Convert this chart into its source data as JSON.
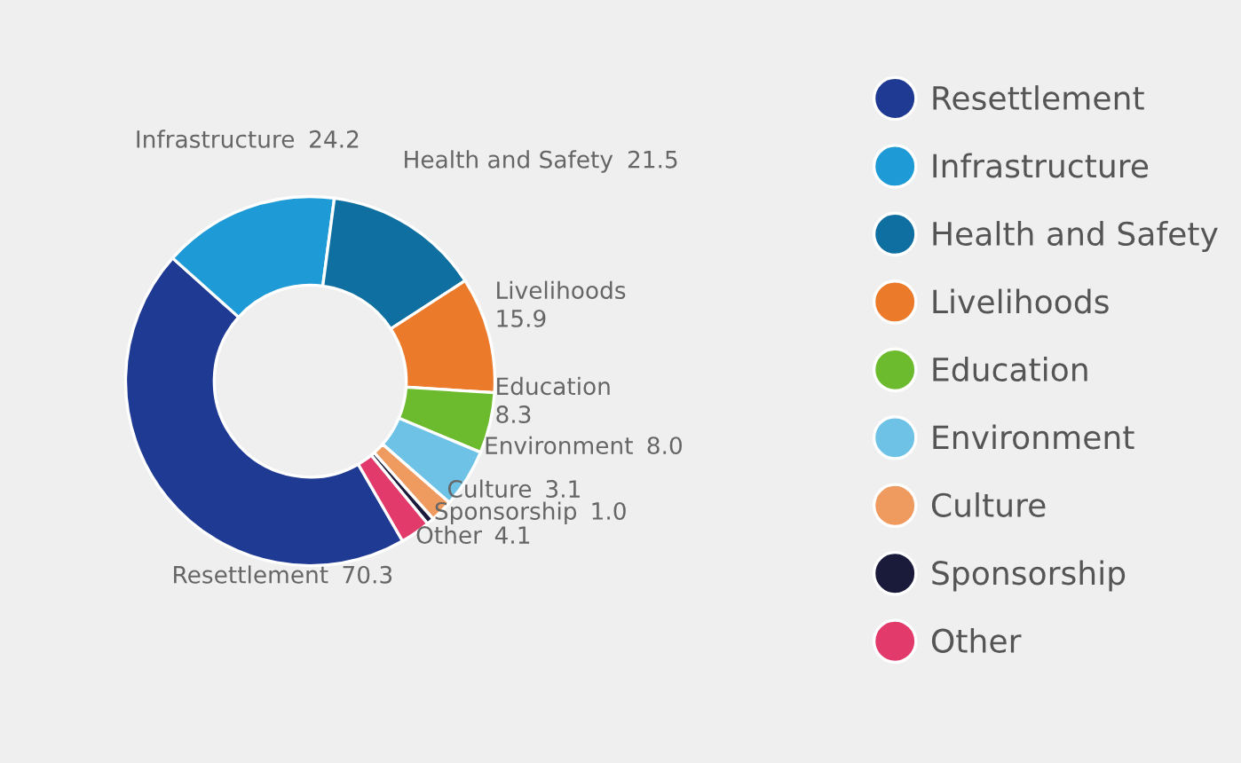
{
  "chart_data": {
    "type": "donut",
    "categories": [
      "Resettlement",
      "Infrastructure",
      "Health and Safety",
      "Livelihoods",
      "Education",
      "Environment",
      "Culture",
      "Sponsorship",
      "Other"
    ],
    "values": [
      70.3,
      24.2,
      21.5,
      15.9,
      8.3,
      8.0,
      3.1,
      1.0,
      4.1
    ],
    "colors": [
      "#1f3a93",
      "#1e9ad6",
      "#0e6fa0",
      "#ec7a2b",
      "#6cbb2f",
      "#6ec2e6",
      "#ef9a5f",
      "#1a1a3a",
      "#e23b6b"
    ],
    "value_labels": [
      "70.3",
      "24.2",
      "21.5",
      "15.9",
      "8.3",
      "8.0",
      "3.1",
      "1.0",
      "4.1"
    ],
    "legend": "right"
  }
}
